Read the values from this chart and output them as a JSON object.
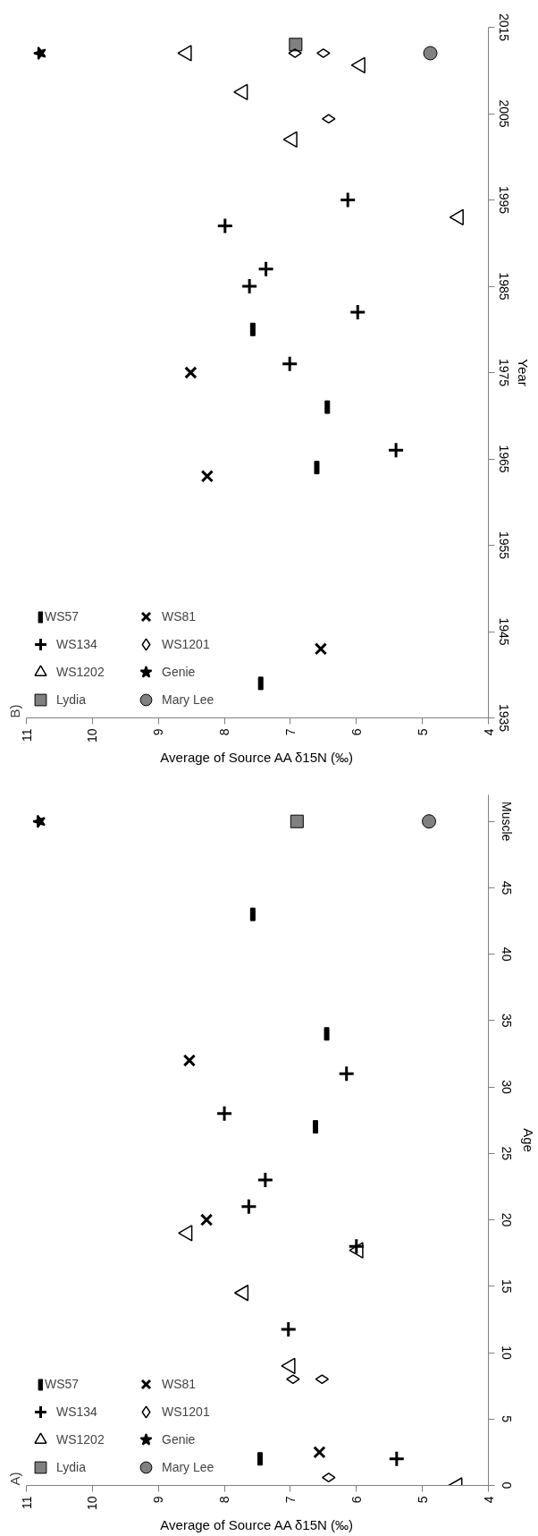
{
  "chart_data": [
    {
      "type": "scatter",
      "xlabel": "Average of Source AA δ15N (‰)",
      "ylabel": "Year",
      "annotations": [
        "B)"
      ],
      "xlim": [
        11,
        4
      ],
      "xticks": [
        11,
        10,
        9,
        8,
        7,
        6,
        5,
        4
      ],
      "ylim": [
        1935,
        2015
      ],
      "yticks": [
        1935,
        1945,
        1955,
        1965,
        1975,
        1985,
        1995,
        2005,
        2015
      ],
      "legend": "bottom left",
      "series": [
        {
          "name": "WS57",
          "color": "#000000",
          "x": [
            7.45,
            6.6,
            6.44,
            7.57
          ],
          "values": [
            1939,
            1964,
            1971,
            1980
          ]
        },
        {
          "name": "WS134",
          "marker": "cross",
          "color": "#000000",
          "x": [
            5.4,
            7.01,
            5.98,
            7.62,
            7.37,
            7.99,
            6.13
          ],
          "values": [
            1966,
            1976,
            1982,
            1985,
            1987,
            1992,
            1995
          ]
        },
        {
          "name": "WS1202",
          "marker": "triangle",
          "color": "#000000",
          "x": [
            4.45,
            6.97,
            7.72,
            5.94,
            8.57
          ],
          "values": [
            1993,
            2002,
            2007.5,
            2010.6,
            2012
          ]
        },
        {
          "name": "Lydia",
          "marker": "square",
          "color": "#808080",
          "x": [
            6.92
          ],
          "values": [
            2013
          ]
        },
        {
          "name": "WS81",
          "marker": "x",
          "color": "#000000",
          "x": [
            6.54,
            8.26,
            8.51
          ],
          "values": [
            1943,
            1963,
            1975
          ]
        },
        {
          "name": "WS1201",
          "marker": "diamond",
          "color": "#000000",
          "x": [
            6.42,
            6.93,
            6.5
          ],
          "values": [
            2004.4,
            2012,
            2012
          ]
        },
        {
          "name": "Genie",
          "marker": "star",
          "color": "#000000",
          "x": [
            10.79
          ],
          "values": [
            2012
          ]
        },
        {
          "name": "Mary Lee",
          "marker": "circle",
          "color": "#808080",
          "x": [
            4.88
          ],
          "values": [
            2012
          ]
        }
      ]
    },
    {
      "type": "scatter",
      "xlabel": "Average of Source AA δ15N (‰)",
      "ylabel": "Age",
      "annotations": [
        "A)"
      ],
      "xlim": [
        11,
        4
      ],
      "xticks": [
        11,
        10,
        9,
        8,
        7,
        6,
        5,
        4
      ],
      "ylim": [
        0,
        52
      ],
      "yticks": [
        0,
        5,
        10,
        15,
        20,
        25,
        30,
        35,
        40,
        45,
        {
          "value": 50,
          "label": "Muscle"
        }
      ],
      "legend": "bottom left",
      "series": [
        {
          "name": "WS57",
          "color": "#000000",
          "x": [
            7.46,
            6.62,
            6.45,
            7.57
          ],
          "values": [
            2,
            27,
            34,
            43
          ]
        },
        {
          "name": "WS134",
          "marker": "cross",
          "color": "#000000",
          "x": [
            5.39,
            7.03,
            6.0,
            7.63,
            7.38,
            8.0,
            6.15
          ],
          "values": [
            2,
            11.75,
            18,
            21,
            23,
            28,
            31
          ]
        },
        {
          "name": "WS1202",
          "marker": "triangle",
          "color": "#000000",
          "x": [
            4.47,
            7.0,
            7.71,
            5.97,
            8.56
          ],
          "values": [
            0,
            9,
            14.5,
            17.7,
            19
          ]
        },
        {
          "name": "Lydia",
          "marker": "square",
          "color": "#808080",
          "x": [
            6.9
          ],
          "values": [
            50
          ]
        },
        {
          "name": "WS81",
          "marker": "x",
          "color": "#000000",
          "x": [
            6.56,
            8.27,
            8.53
          ],
          "values": [
            2.5,
            20,
            32
          ]
        },
        {
          "name": "WS1201",
          "marker": "diamond",
          "color": "#000000",
          "x": [
            6.42,
            6.96,
            6.52
          ],
          "values": [
            0.6,
            8,
            8
          ]
        },
        {
          "name": "Genie",
          "marker": "star",
          "color": "#000000",
          "x": [
            10.8
          ],
          "values": [
            50
          ]
        },
        {
          "name": "Mary Lee",
          "marker": "circle",
          "color": "#808080",
          "x": [
            4.9
          ],
          "values": [
            50
          ]
        }
      ]
    }
  ]
}
